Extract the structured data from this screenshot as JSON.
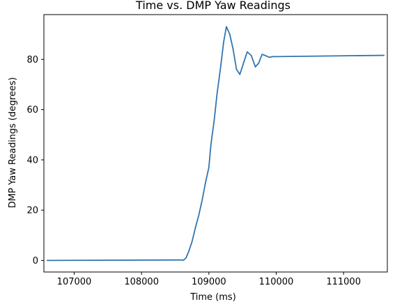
{
  "chart_data": {
    "type": "line",
    "title": "Time vs. DMP Yaw Readings",
    "xlabel": "Time (ms)",
    "ylabel": "DMP Yaw Readings (degrees)",
    "xlim": [
      106550,
      111650
    ],
    "ylim": [
      -4.6,
      97.8
    ],
    "xticks": [
      107000,
      108000,
      109000,
      110000,
      111000
    ],
    "yticks": [
      0,
      20,
      40,
      60,
      80
    ],
    "grid": false,
    "series": [
      {
        "color": "#3274b0",
        "x": [
          106600,
          108550,
          108620,
          108660,
          108700,
          108750,
          108800,
          108850,
          108900,
          108950,
          109000,
          109030,
          109080,
          109120,
          109170,
          109220,
          109260,
          109310,
          109360,
          109410,
          109460,
          109520,
          109570,
          109630,
          109690,
          109740,
          109790,
          109840,
          109900,
          109950,
          110000,
          111600
        ],
        "y": [
          0,
          0.2,
          0.1,
          1.0,
          3.5,
          7.5,
          13,
          18,
          24,
          31,
          37,
          46,
          56,
          66,
          76,
          87,
          93,
          90,
          84,
          76,
          74,
          79,
          83,
          81.5,
          77,
          78.5,
          82,
          81.5,
          80.8,
          81.1,
          81.1,
          81.6
        ]
      }
    ]
  }
}
